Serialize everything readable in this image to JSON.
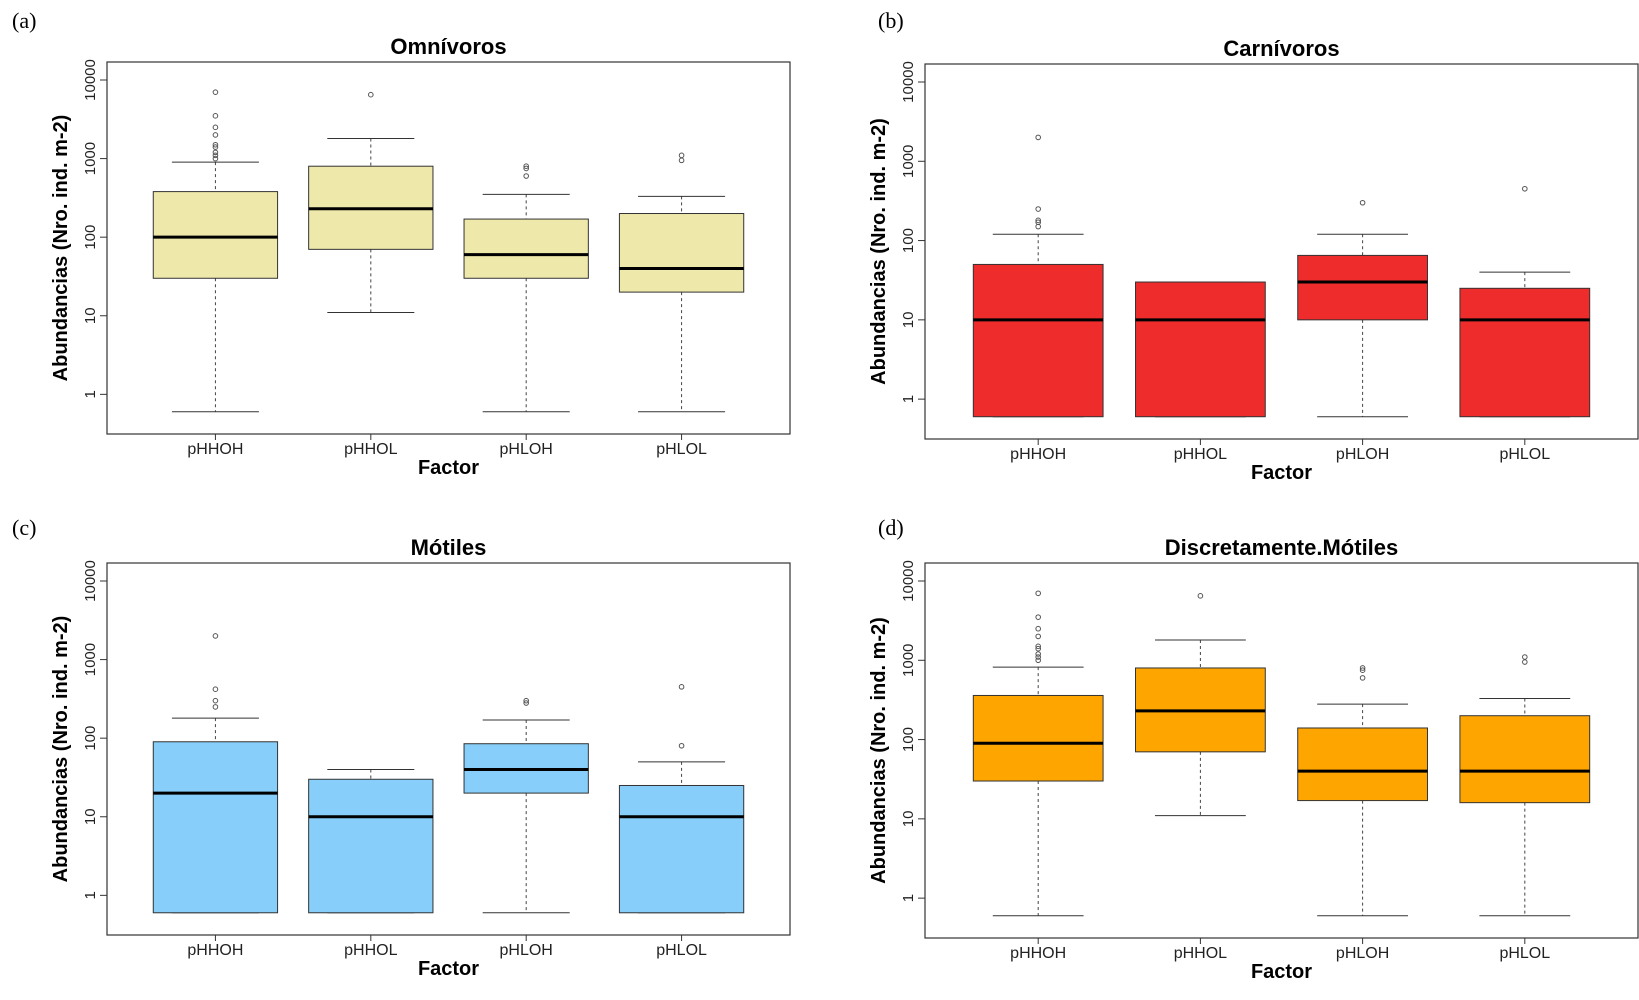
{
  "chart_data": [
    {
      "type": "boxplot",
      "panel_label": "(a)",
      "title": "Omnívoros",
      "xlabel": "Factor",
      "ylabel": "Abundancias (Nro. ind. m-2)",
      "y_scale": "log",
      "ylim": [
        0.5,
        10000
      ],
      "y_ticks": [
        "1",
        "10",
        "100",
        "1000",
        "10000"
      ],
      "categories": [
        "pHHOH",
        "pHHOL",
        "pHLOH",
        "pHLOL"
      ],
      "fill_color": "#EEE8AA",
      "boxes": [
        {
          "category": "pHHOH",
          "whisker_low": 0.6,
          "q1": 30,
          "median": 100,
          "q3": 380,
          "whisker_high": 900,
          "outliers": [
            1000,
            1100,
            1200,
            1400,
            1500,
            2000,
            2500,
            3500,
            7000
          ]
        },
        {
          "category": "pHHOL",
          "whisker_low": 11,
          "q1": 70,
          "median": 230,
          "q3": 800,
          "whisker_high": 1800,
          "outliers": [
            6500
          ]
        },
        {
          "category": "pHLOH",
          "whisker_low": 0.6,
          "q1": 30,
          "median": 60,
          "q3": 170,
          "whisker_high": 350,
          "outliers": [
            600,
            750,
            800
          ]
        },
        {
          "category": "pHLOL",
          "whisker_low": 0.6,
          "q1": 20,
          "median": 40,
          "q3": 200,
          "whisker_high": 330,
          "outliers": [
            950,
            1100
          ]
        }
      ]
    },
    {
      "type": "boxplot",
      "panel_label": "(b)",
      "title": "Carnívoros",
      "xlabel": "Factor",
      "ylabel": "Abundancias (Nro. ind. m-2)",
      "y_scale": "log",
      "ylim": [
        0.5,
        10000
      ],
      "y_ticks": [
        "1",
        "10",
        "100",
        "1000",
        "10000"
      ],
      "categories": [
        "pHHOH",
        "pHHOL",
        "pHLOH",
        "pHLOL"
      ],
      "fill_color": "#EE2C2C",
      "boxes": [
        {
          "category": "pHHOH",
          "whisker_low": 0.6,
          "q1": 0.6,
          "median": 10,
          "q3": 50,
          "whisker_high": 120,
          "outliers": [
            150,
            170,
            180,
            250,
            2000
          ]
        },
        {
          "category": "pHHOL",
          "whisker_low": 0.6,
          "q1": 0.6,
          "median": 10,
          "q3": 30,
          "whisker_high": 30,
          "outliers": []
        },
        {
          "category": "pHLOH",
          "whisker_low": 0.6,
          "q1": 10,
          "median": 30,
          "q3": 65,
          "whisker_high": 120,
          "outliers": [
            300
          ]
        },
        {
          "category": "pHLOL",
          "whisker_low": 0.6,
          "q1": 0.6,
          "median": 10,
          "q3": 25,
          "whisker_high": 40,
          "outliers": [
            450
          ]
        }
      ]
    },
    {
      "type": "boxplot",
      "panel_label": "(c)",
      "title": "Mótiles",
      "xlabel": "Factor",
      "ylabel": "Abundancias (Nro. ind. m-2)",
      "y_scale": "log",
      "ylim": [
        0.5,
        10000
      ],
      "y_ticks": [
        "1",
        "10",
        "100",
        "1000",
        "10000"
      ],
      "categories": [
        "pHHOH",
        "pHHOL",
        "pHLOH",
        "pHLOL"
      ],
      "fill_color": "#87CEFA",
      "boxes": [
        {
          "category": "pHHOH",
          "whisker_low": 0.6,
          "q1": 0.6,
          "median": 20,
          "q3": 90,
          "whisker_high": 180,
          "outliers": [
            250,
            300,
            420,
            2000
          ]
        },
        {
          "category": "pHHOL",
          "whisker_low": 0.6,
          "q1": 0.6,
          "median": 10,
          "q3": 30,
          "whisker_high": 40,
          "outliers": []
        },
        {
          "category": "pHLOH",
          "whisker_low": 0.6,
          "q1": 20,
          "median": 40,
          "q3": 85,
          "whisker_high": 170,
          "outliers": [
            280,
            300
          ]
        },
        {
          "category": "pHLOL",
          "whisker_low": 0.6,
          "q1": 0.6,
          "median": 10,
          "q3": 25,
          "whisker_high": 50,
          "outliers": [
            80,
            450
          ]
        }
      ]
    },
    {
      "type": "boxplot",
      "panel_label": "(d)",
      "title": "Discretamente.Mótiles",
      "xlabel": "Factor",
      "ylabel": "Abundancias (Nro. ind. m-2)",
      "y_scale": "log",
      "ylim": [
        0.5,
        10000
      ],
      "y_ticks": [
        "1",
        "10",
        "100",
        "1000",
        "10000"
      ],
      "categories": [
        "pHHOH",
        "pHHOL",
        "pHLOH",
        "pHLOL"
      ],
      "fill_color": "#FFA500",
      "boxes": [
        {
          "category": "pHHOH",
          "whisker_low": 0.6,
          "q1": 30,
          "median": 90,
          "q3": 360,
          "whisker_high": 820,
          "outliers": [
            1000,
            1100,
            1200,
            1400,
            1500,
            2000,
            2500,
            3500,
            7000
          ]
        },
        {
          "category": "pHHOL",
          "whisker_low": 11,
          "q1": 70,
          "median": 230,
          "q3": 800,
          "whisker_high": 1800,
          "outliers": [
            6500
          ]
        },
        {
          "category": "pHLOH",
          "whisker_low": 0.6,
          "q1": 17,
          "median": 40,
          "q3": 140,
          "whisker_high": 280,
          "outliers": [
            600,
            750,
            800
          ]
        },
        {
          "category": "pHLOL",
          "whisker_low": 0.6,
          "q1": 16,
          "median": 40,
          "q3": 200,
          "whisker_high": 330,
          "outliers": [
            950,
            1100
          ]
        }
      ]
    }
  ]
}
